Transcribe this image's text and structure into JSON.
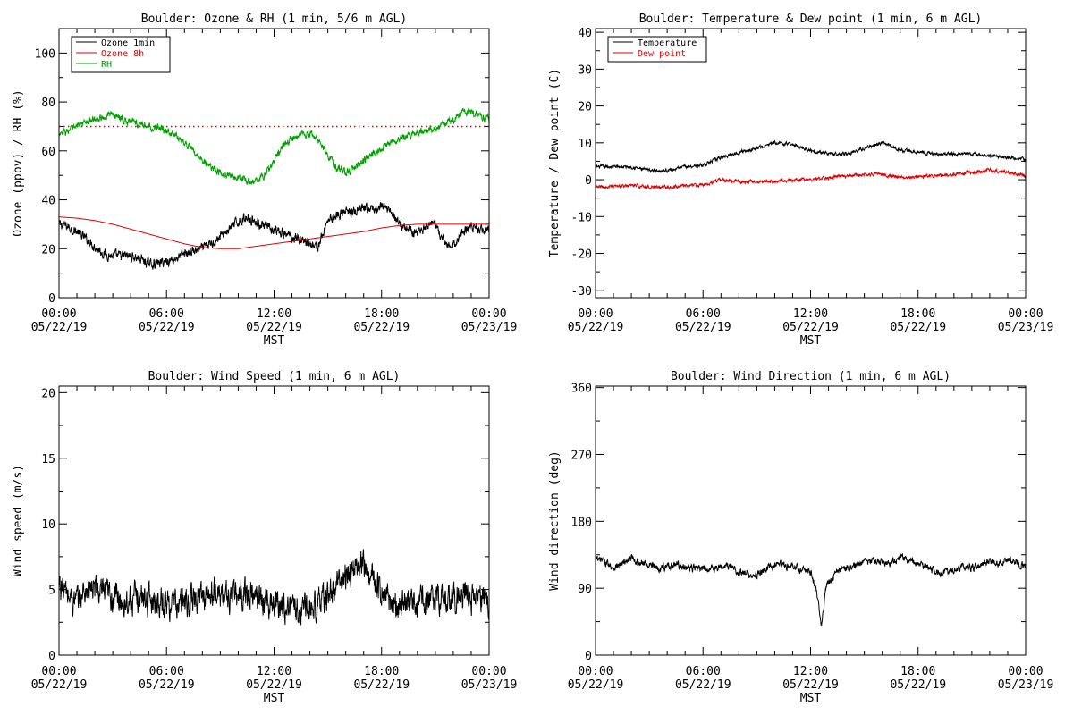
{
  "chart_data": [
    {
      "id": "ozone_rh",
      "type": "line",
      "title": "Boulder: Ozone & RH (1 min, 5/6 m AGL)",
      "xlabel": "MST",
      "ylabel": "Ozone (ppbv) / RH (%)",
      "ylim": [
        0,
        110
      ],
      "yticks": [
        0,
        20,
        40,
        60,
        80,
        100
      ],
      "xlim": [
        0,
        24
      ],
      "xticks": [
        0,
        6,
        12,
        18,
        24
      ],
      "xticklabels": [
        [
          "00:00",
          "05/22/19"
        ],
        [
          "06:00",
          "05/22/19"
        ],
        [
          "12:00",
          "05/22/19"
        ],
        [
          "18:00",
          "05/22/19"
        ],
        [
          "00:00",
          "05/23/19"
        ]
      ],
      "legend": "top-left",
      "hlines": [
        {
          "y": 70,
          "color": "#dd0000",
          "style": "dotted"
        }
      ],
      "series": [
        {
          "name": "Ozone 1min",
          "color": "#000000",
          "noise": 1.6,
          "x": [
            0,
            0.5,
            1,
            1.5,
            2,
            2.5,
            3,
            3.5,
            4,
            4.5,
            5,
            5.5,
            6,
            6.5,
            7,
            7.5,
            8,
            8.5,
            9,
            9.5,
            10,
            10.5,
            11,
            11.5,
            12,
            12.5,
            13,
            13.5,
            14,
            14.5,
            15,
            15.5,
            16,
            16.5,
            17,
            17.5,
            18,
            18.5,
            19,
            19.5,
            20,
            20.5,
            21,
            21.5,
            22,
            22.5,
            23,
            23.5,
            24
          ],
          "y": [
            30,
            29,
            27,
            24,
            21,
            18,
            17,
            17,
            17,
            16,
            14,
            14,
            15,
            16,
            18,
            19,
            20,
            22,
            25,
            28,
            31,
            33,
            31,
            29,
            27,
            26,
            25,
            24,
            22,
            21,
            32,
            34,
            35,
            35,
            36,
            36,
            37,
            36,
            30,
            28,
            27,
            28,
            30,
            22,
            21,
            27,
            29,
            28,
            28
          ]
        },
        {
          "name": "Ozone 8h",
          "color": "#dd0000",
          "noise": 0,
          "x": [
            0,
            1,
            2,
            3,
            4,
            5,
            6,
            7,
            8,
            9,
            10,
            11,
            12,
            13,
            14,
            15,
            16,
            17,
            18,
            19,
            20,
            21,
            22,
            23,
            24
          ],
          "y": [
            33,
            32.5,
            31.5,
            30,
            28,
            26,
            24,
            22,
            20.5,
            20,
            20,
            21,
            22,
            23,
            24,
            25,
            26,
            27,
            28.5,
            29.5,
            30,
            30,
            30,
            30,
            30
          ]
        },
        {
          "name": "RH",
          "color": "#00a000",
          "noise": 1.2,
          "x": [
            0,
            0.5,
            1,
            1.5,
            2,
            2.5,
            3,
            3.5,
            4,
            4.5,
            5,
            5.5,
            6,
            6.5,
            7,
            7.5,
            8,
            8.5,
            9,
            9.5,
            10,
            10.5,
            11,
            11.5,
            12,
            12.5,
            13,
            13.5,
            14,
            14.5,
            15,
            15.5,
            16,
            16.5,
            17,
            17.5,
            18,
            18.5,
            19,
            19.5,
            20,
            20.5,
            21,
            21.5,
            22,
            22.5,
            23,
            23.5,
            24
          ],
          "y": [
            67,
            68,
            70,
            72,
            73,
            74,
            75,
            73,
            72,
            71,
            70,
            70,
            68,
            66,
            63,
            60,
            56,
            53,
            51,
            50,
            49,
            48,
            48,
            50,
            56,
            62,
            65,
            67,
            67,
            64,
            58,
            53,
            51,
            53,
            56,
            59,
            61,
            63,
            65,
            66,
            67,
            69,
            69,
            71,
            73,
            76,
            76,
            74,
            73
          ]
        }
      ]
    },
    {
      "id": "temp_dew",
      "type": "line",
      "title": "Boulder: Temperature & Dew point (1 min, 6 m AGL)",
      "xlabel": "MST",
      "ylabel": "Temperature / Dew point (C)",
      "ylim": [
        -32,
        41
      ],
      "yticks": [
        -30,
        -20,
        -10,
        0,
        10,
        20,
        30,
        40
      ],
      "xlim": [
        0,
        24
      ],
      "xticks": [
        0,
        6,
        12,
        18,
        24
      ],
      "xticklabels": [
        [
          "00:00",
          "05/22/19"
        ],
        [
          "06:00",
          "05/22/19"
        ],
        [
          "12:00",
          "05/22/19"
        ],
        [
          "18:00",
          "05/22/19"
        ],
        [
          "00:00",
          "05/23/19"
        ]
      ],
      "legend": "top-left",
      "series": [
        {
          "name": "Temperature",
          "color": "#000000",
          "noise": 0.35,
          "x": [
            0,
            1,
            2,
            3,
            4,
            5,
            6,
            7,
            8,
            9,
            10,
            11,
            12,
            13,
            14,
            15,
            16,
            17,
            18,
            19,
            20,
            21,
            22,
            23,
            24
          ],
          "y": [
            3.5,
            3.5,
            3.5,
            2.5,
            2.5,
            3.5,
            4,
            6,
            7.5,
            8.5,
            10,
            9.5,
            8,
            7,
            7,
            8.5,
            10,
            8,
            7.5,
            7,
            7,
            7,
            6.5,
            6,
            5.5
          ]
        },
        {
          "name": "Dew point",
          "color": "#dd0000",
          "noise": 0.35,
          "x": [
            0,
            1,
            2,
            3,
            4,
            5,
            6,
            7,
            8,
            9,
            10,
            11,
            12,
            13,
            14,
            15,
            16,
            17,
            18,
            19,
            20,
            21,
            22,
            23,
            24
          ],
          "y": [
            -2,
            -2,
            -1.5,
            -2,
            -2,
            -1.5,
            -1.5,
            0,
            -0.5,
            -0.5,
            -0.5,
            0,
            0,
            0.5,
            1,
            1.5,
            1.5,
            0.5,
            1,
            1,
            1.5,
            2,
            2.5,
            2,
            1
          ]
        }
      ]
    },
    {
      "id": "wind_speed",
      "type": "line",
      "title": "Boulder: Wind Speed (1 min, 6 m AGL)",
      "xlabel": "MST",
      "ylabel": "Wind speed (m/s)",
      "ylim": [
        0,
        20.5
      ],
      "yticks": [
        0,
        5,
        10,
        15,
        20
      ],
      "xlim": [
        0,
        24
      ],
      "xticks": [
        0,
        6,
        12,
        18,
        24
      ],
      "xticklabels": [
        [
          "00:00",
          "05/22/19"
        ],
        [
          "06:00",
          "05/22/19"
        ],
        [
          "12:00",
          "05/22/19"
        ],
        [
          "18:00",
          "05/22/19"
        ],
        [
          "00:00",
          "05/23/19"
        ]
      ],
      "legend": "none",
      "series": [
        {
          "name": "",
          "color": "#000000",
          "noise": 0.9,
          "x": [
            0,
            0.5,
            1,
            1.5,
            2,
            2.5,
            3,
            3.5,
            4,
            4.5,
            5,
            5.5,
            6,
            6.5,
            7,
            7.5,
            8,
            8.5,
            9,
            9.5,
            10,
            10.5,
            11,
            11.5,
            12,
            12.5,
            13,
            13.5,
            14,
            14.5,
            15,
            15.5,
            16,
            16.5,
            17,
            17.5,
            18,
            18.5,
            19,
            19.5,
            20,
            20.5,
            21,
            21.5,
            22,
            22.5,
            23,
            23.5,
            24
          ],
          "y": [
            5.5,
            4.5,
            4,
            5,
            5,
            4.5,
            4.5,
            4.2,
            4.2,
            4.4,
            4.3,
            4.2,
            4,
            3.8,
            4,
            4.2,
            4.5,
            4.6,
            4.6,
            4.4,
            4.5,
            4.7,
            4.5,
            4.2,
            4,
            3.8,
            3.6,
            3.5,
            3.8,
            4,
            4.5,
            5.2,
            6,
            6.5,
            7,
            6,
            5,
            4,
            3.8,
            3.9,
            4,
            4.1,
            4.3,
            4.4,
            4.4,
            4.4,
            4.3,
            4.2,
            4
          ]
        }
      ]
    },
    {
      "id": "wind_dir",
      "type": "line",
      "title": "Boulder: Wind Direction (1 min, 6 m AGL)",
      "xlabel": "MST",
      "ylabel": "Wind direction (deg)",
      "ylim": [
        0,
        362
      ],
      "yticks": [
        0,
        90,
        180,
        270,
        360
      ],
      "xlim": [
        0,
        24
      ],
      "xticks": [
        0,
        6,
        12,
        18,
        24
      ],
      "xticklabels": [
        [
          "00:00",
          "05/22/19"
        ],
        [
          "06:00",
          "05/22/19"
        ],
        [
          "12:00",
          "05/22/19"
        ],
        [
          "18:00",
          "05/22/19"
        ],
        [
          "00:00",
          "05/23/19"
        ]
      ],
      "legend": "none",
      "series": [
        {
          "name": "",
          "color": "#000000",
          "noise": 4,
          "x": [
            0,
            0.5,
            1,
            1.5,
            2,
            2.5,
            3,
            3.5,
            4,
            4.5,
            5,
            5.5,
            6,
            6.5,
            7,
            7.5,
            8,
            8.5,
            9,
            9.5,
            10,
            10.5,
            11,
            11.5,
            12,
            12.3,
            12.6,
            12.9,
            13.2,
            13.5,
            14,
            14.5,
            15,
            15.5,
            16,
            16.5,
            17,
            17.5,
            18,
            18.5,
            19,
            19.5,
            20,
            20.5,
            21,
            21.5,
            22,
            22.5,
            23,
            23.5,
            24
          ],
          "y": [
            128,
            126,
            118,
            122,
            130,
            124,
            122,
            118,
            120,
            122,
            118,
            117,
            115,
            118,
            118,
            120,
            112,
            108,
            108,
            115,
            120,
            122,
            118,
            115,
            112,
            90,
            42,
            95,
            102,
            112,
            118,
            120,
            125,
            128,
            125,
            124,
            132,
            128,
            120,
            118,
            112,
            110,
            115,
            120,
            118,
            122,
            125,
            124,
            128,
            124,
            120
          ]
        }
      ]
    }
  ]
}
